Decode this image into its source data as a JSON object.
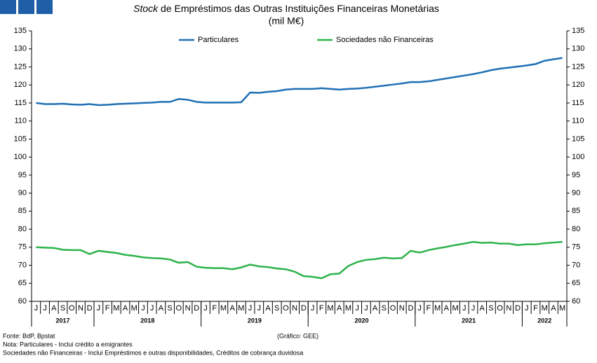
{
  "chart_data": {
    "type": "line",
    "title_emphasis": "Stock",
    "title": "de Empréstimos das Outras Instituições Financeiras Monetárias",
    "subtitle": "(mil M€)",
    "categories": [
      "J",
      "J",
      "A",
      "S",
      "O",
      "N",
      "D",
      "J",
      "F",
      "M",
      "A",
      "M",
      "J",
      "J",
      "A",
      "S",
      "O",
      "N",
      "D",
      "J",
      "F",
      "M",
      "A",
      "M",
      "J",
      "J",
      "A",
      "S",
      "O",
      "N",
      "D",
      "J",
      "F",
      "M",
      "A",
      "M",
      "J",
      "J",
      "A",
      "S",
      "O",
      "N",
      "D",
      "J",
      "F",
      "M",
      "A",
      "M",
      "J",
      "J",
      "A",
      "S",
      "O",
      "N",
      "D",
      "J",
      "F",
      "M",
      "A",
      "M"
    ],
    "x_groups": [
      {
        "label": "2017",
        "count": 7
      },
      {
        "label": "2018",
        "count": 12
      },
      {
        "label": "2019",
        "count": 12
      },
      {
        "label": "2020",
        "count": 12
      },
      {
        "label": "2021",
        "count": 12
      },
      {
        "label": "2022",
        "count": 5
      }
    ],
    "series": [
      {
        "name": "Particulares",
        "color": "#1f6fb5",
        "values": [
          115.0,
          114.7,
          114.7,
          114.8,
          114.6,
          114.5,
          114.7,
          114.4,
          114.5,
          114.7,
          114.8,
          114.9,
          115.0,
          115.1,
          115.3,
          115.3,
          116.1,
          115.9,
          115.3,
          115.1,
          115.1,
          115.1,
          115.1,
          115.2,
          117.9,
          117.8,
          118.1,
          118.3,
          118.7,
          118.9,
          118.9,
          118.9,
          119.1,
          118.9,
          118.7,
          118.9,
          119.0,
          119.2,
          119.5,
          119.8,
          120.1,
          120.4,
          120.8,
          120.8,
          121.0,
          121.4,
          121.8,
          122.2,
          122.6,
          123.0,
          123.5,
          124.1,
          124.5,
          124.8,
          125.1,
          125.4,
          125.8,
          126.7,
          127.1,
          127.5
        ]
      },
      {
        "name": "Sociedades não Financeiras",
        "color": "#2db34a",
        "values": [
          75.0,
          74.9,
          74.8,
          74.3,
          74.2,
          74.2,
          73.1,
          74.0,
          73.7,
          73.4,
          72.9,
          72.6,
          72.2,
          72.0,
          71.9,
          71.6,
          70.7,
          70.9,
          69.6,
          69.3,
          69.2,
          69.2,
          68.9,
          69.4,
          70.2,
          69.7,
          69.5,
          69.1,
          68.9,
          68.2,
          67.0,
          66.8,
          66.4,
          67.5,
          67.7,
          69.8,
          70.9,
          71.5,
          71.7,
          72.1,
          71.9,
          72.0,
          74.0,
          73.5,
          74.2,
          74.7,
          75.1,
          75.6,
          76.0,
          76.5,
          76.2,
          76.3,
          76.0,
          76.0,
          75.6,
          75.8,
          75.8,
          76.1,
          76.3,
          76.5
        ]
      }
    ],
    "ylim": [
      60,
      135
    ],
    "yticks": [
      60,
      65,
      70,
      75,
      80,
      85,
      90,
      95,
      100,
      105,
      110,
      115,
      120,
      125,
      130,
      135
    ],
    "y2lim": [
      60,
      135
    ],
    "y2ticks": [
      60,
      65,
      70,
      75,
      80,
      85,
      90,
      95,
      100,
      105,
      110,
      115,
      120,
      125,
      130,
      135
    ],
    "legend": "top",
    "source": "Fonte: BdP, Bpstat",
    "note": "Nota: Particulares - Inclui crédito a emigrantes",
    "note2": "Sociedades não Financeiras - Inclui Empréstimos e outras disponibilidades, Créditos de cobrança duvidosa",
    "credit": "(Gráfico: GEE)"
  }
}
